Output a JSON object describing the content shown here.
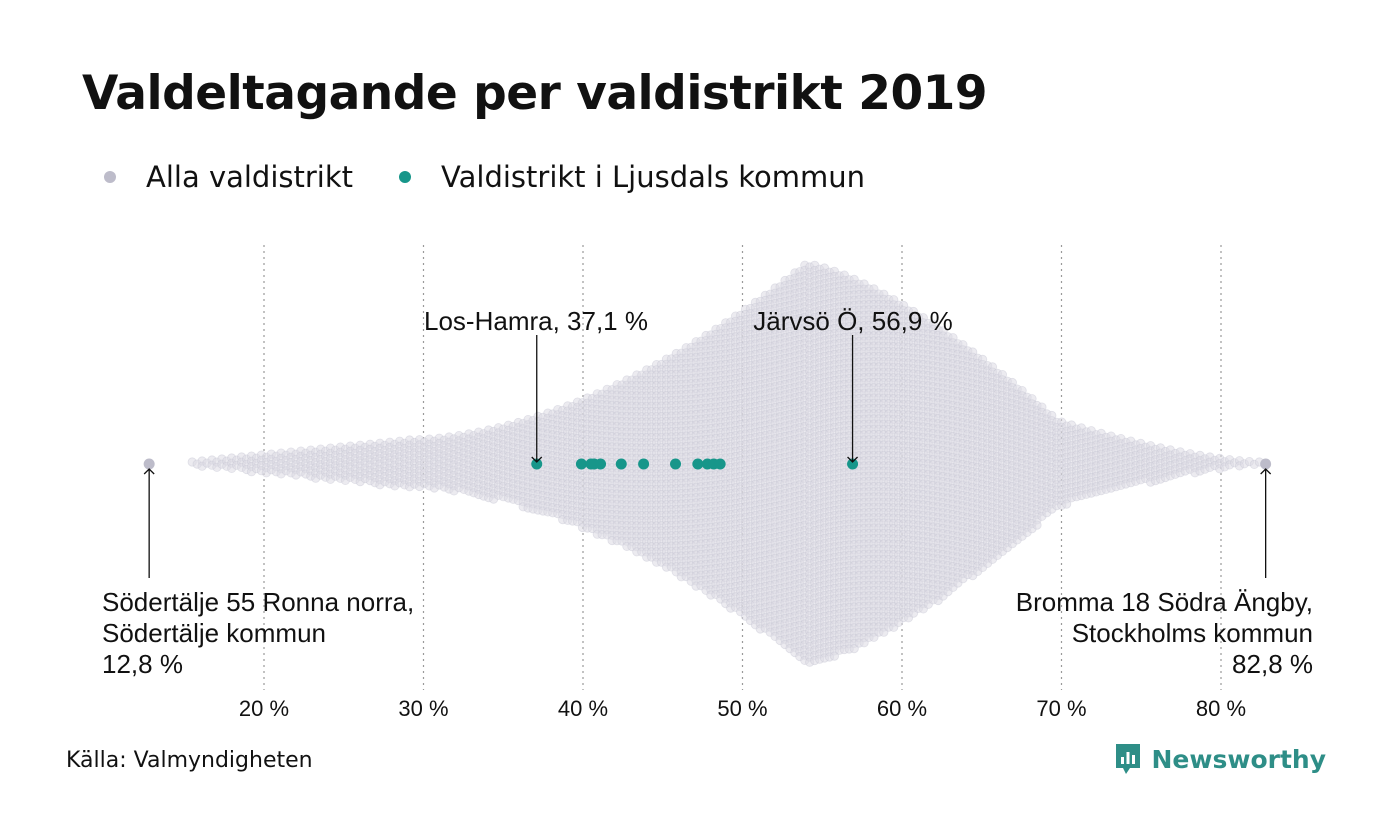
{
  "title": "Valdeltagande per valdistrikt 2019",
  "legend": {
    "all_label": "Alla valdistrikt",
    "local_label": "Valdistrikt i Ljusdals kommun"
  },
  "colors": {
    "all": "#bdbcca",
    "all_fill": "#dcdbe3",
    "local": "#17968a",
    "grid": "#9a9a9a",
    "brand": "#2e8e87"
  },
  "chart_data": {
    "type": "beeswarm",
    "xlabel": "",
    "ylabel": "",
    "xlim": [
      12,
      84
    ],
    "x_ticks": [
      20,
      30,
      40,
      50,
      60,
      70,
      80
    ],
    "x_tick_labels": [
      "20 %",
      "30 %",
      "40 %",
      "50 %",
      "60 %",
      "70 %",
      "80 %"
    ],
    "grid": "vertical dotted",
    "series": [
      {
        "name": "Alla valdistrikt",
        "distribution": "dense swarm of all districts, approx. 12.8–82.8 %, peak near 54 %",
        "min": 12.8,
        "max": 82.8,
        "mode": 54
      },
      {
        "name": "Valdistrikt i Ljusdals kommun",
        "values": [
          37.1,
          39.9,
          40.5,
          40.7,
          41.1,
          42.4,
          43.8,
          45.8,
          47.2,
          47.8,
          48.2,
          48.6,
          56.9
        ]
      }
    ],
    "annotations": [
      {
        "id": "los-hamra",
        "lines": [
          "Los-Hamra, 37,1 %"
        ],
        "value": 37.1
      },
      {
        "id": "jarvso",
        "lines": [
          "Järvsö Ö, 56,9 %"
        ],
        "value": 56.9
      },
      {
        "id": "sodertalje",
        "lines": [
          "Södertälje 55 Ronna norra,",
          "Södertälje kommun",
          "12,8 %"
        ],
        "value": 12.8
      },
      {
        "id": "bromma",
        "lines": [
          "Bromma 18 Södra Ängby,",
          "Stockholms kommun",
          "82,8 %"
        ],
        "value": 82.8
      }
    ]
  },
  "footer": {
    "source": "Källa: Valmyndigheten",
    "brand": "Newsworthy"
  }
}
